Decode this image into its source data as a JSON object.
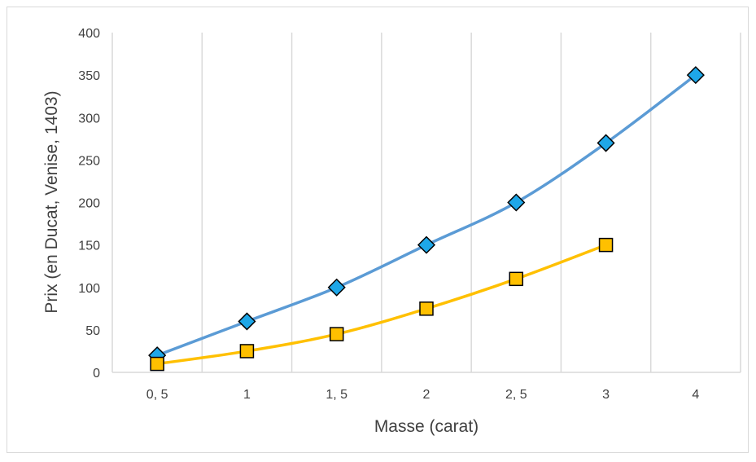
{
  "chart_data": {
    "type": "line",
    "categories": [
      "0, 5",
      "1",
      "1, 5",
      "2",
      "2, 5",
      "3",
      "4"
    ],
    "series": [
      {
        "values": [
          20,
          60,
          100,
          150,
          200,
          270,
          350
        ],
        "color": "#5b9bd5",
        "marker": "diamond",
        "marker_color": "#1ea7e8"
      },
      {
        "values": [
          10,
          25,
          45,
          75,
          110,
          150,
          null
        ],
        "color": "#ffc000",
        "marker": "square",
        "marker_color": "#ffc000"
      }
    ],
    "xlabel": "Masse (carat)",
    "ylabel": "Prix (en Ducat, Venise, 1403)",
    "ylim": [
      0,
      400
    ],
    "yticks": [
      0,
      50,
      100,
      150,
      200,
      250,
      300,
      350,
      400
    ],
    "grid": "vertical",
    "smooth": true
  }
}
